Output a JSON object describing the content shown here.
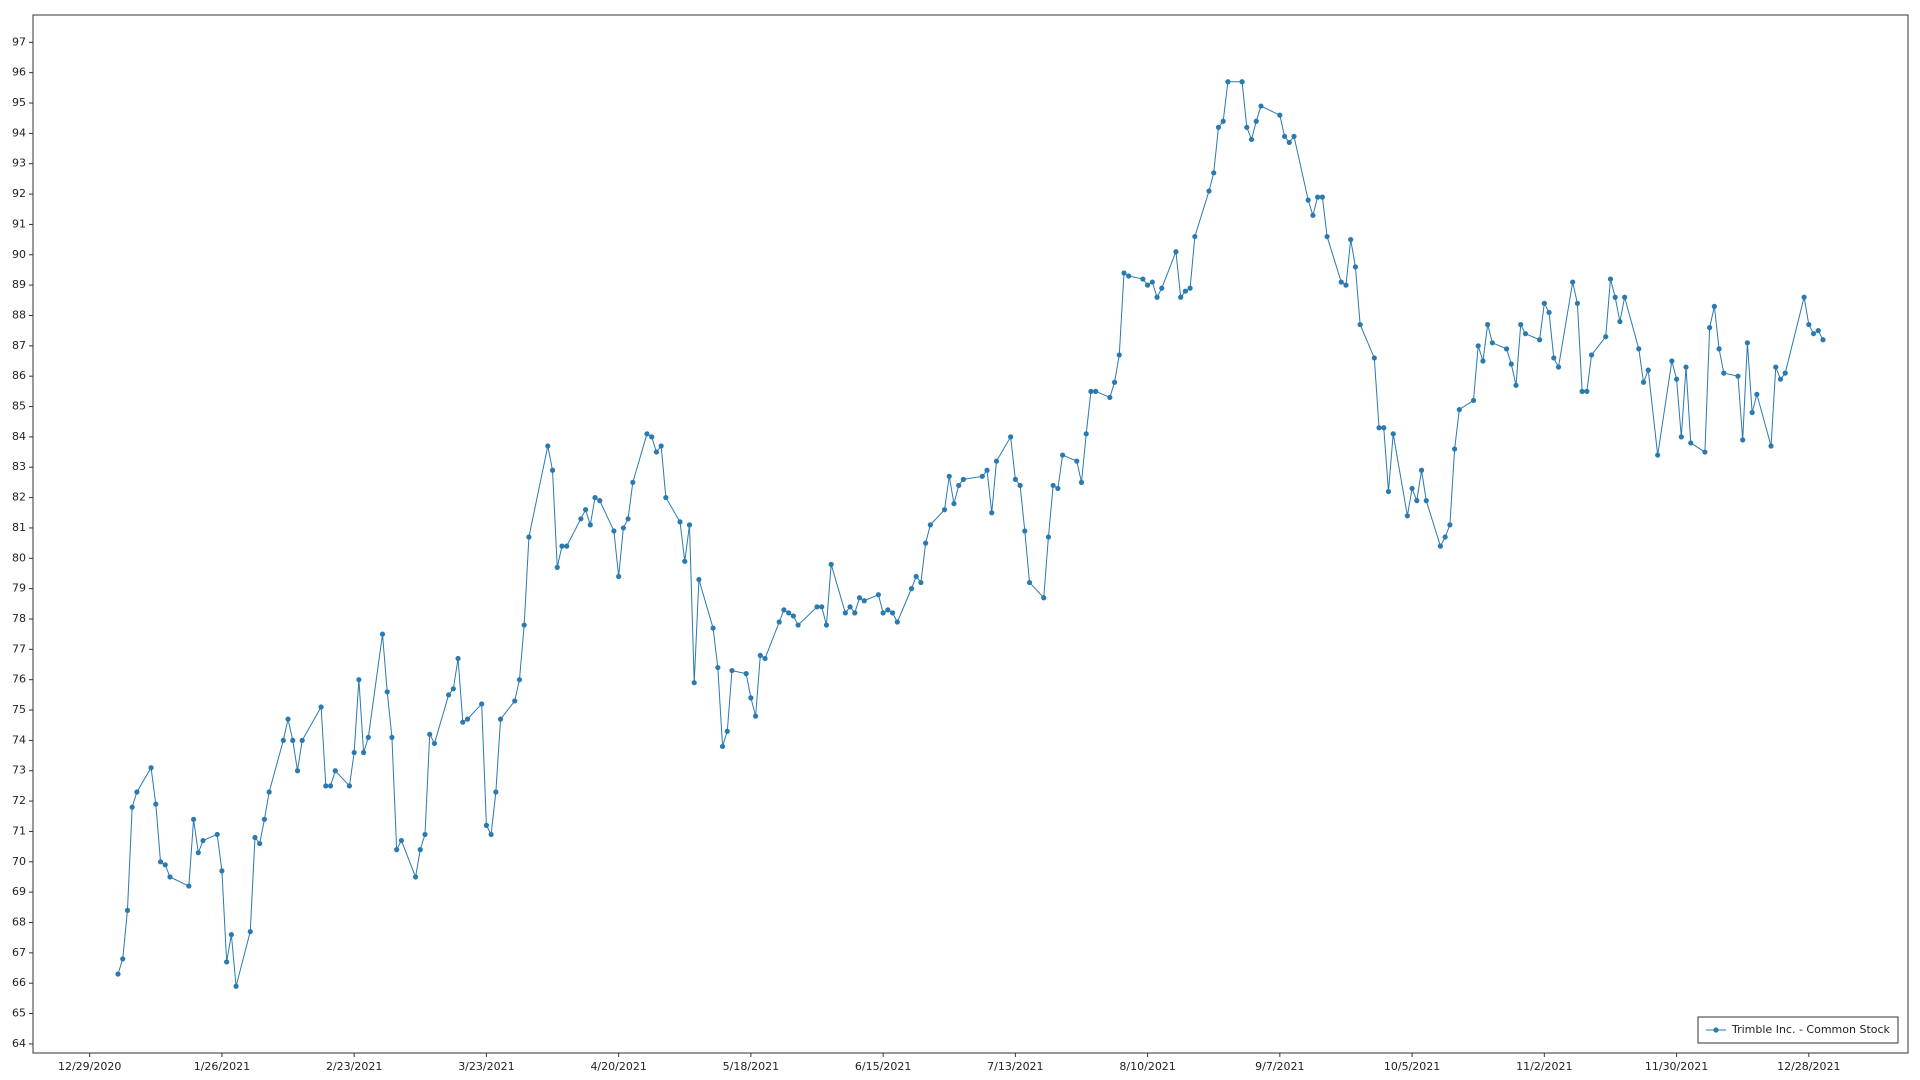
{
  "chart_data": {
    "type": "line",
    "x": [
      "1/4/2021",
      "1/5/2021",
      "1/6/2021",
      "1/7/2021",
      "1/8/2021",
      "1/11/2021",
      "1/12/2021",
      "1/13/2021",
      "1/14/2021",
      "1/15/2021",
      "1/19/2021",
      "1/20/2021",
      "1/21/2021",
      "1/22/2021",
      "1/25/2021",
      "1/26/2021",
      "1/27/2021",
      "1/28/2021",
      "1/29/2021",
      "2/1/2021",
      "2/2/2021",
      "2/3/2021",
      "2/4/2021",
      "2/5/2021",
      "2/8/2021",
      "2/9/2021",
      "2/10/2021",
      "2/11/2021",
      "2/12/2021",
      "2/16/2021",
      "2/17/2021",
      "2/18/2021",
      "2/19/2021",
      "2/22/2021",
      "2/23/2021",
      "2/24/2021",
      "2/25/2021",
      "2/26/2021",
      "3/1/2021",
      "3/2/2021",
      "3/3/2021",
      "3/4/2021",
      "3/5/2021",
      "3/8/2021",
      "3/9/2021",
      "3/10/2021",
      "3/11/2021",
      "3/12/2021",
      "3/15/2021",
      "3/16/2021",
      "3/17/2021",
      "3/18/2021",
      "3/19/2021",
      "3/22/2021",
      "3/23/2021",
      "3/24/2021",
      "3/25/2021",
      "3/26/2021",
      "3/29/2021",
      "3/30/2021",
      "3/31/2021",
      "4/1/2021",
      "4/5/2021",
      "4/6/2021",
      "4/7/2021",
      "4/8/2021",
      "4/9/2021",
      "4/12/2021",
      "4/13/2021",
      "4/14/2021",
      "4/15/2021",
      "4/16/2021",
      "4/19/2021",
      "4/20/2021",
      "4/21/2021",
      "4/22/2021",
      "4/23/2021",
      "4/26/2021",
      "4/27/2021",
      "4/28/2021",
      "4/29/2021",
      "4/30/2021",
      "5/3/2021",
      "5/4/2021",
      "5/5/2021",
      "5/6/2021",
      "5/7/2021",
      "5/10/2021",
      "5/11/2021",
      "5/12/2021",
      "5/13/2021",
      "5/14/2021",
      "5/17/2021",
      "5/18/2021",
      "5/19/2021",
      "5/20/2021",
      "5/21/2021",
      "5/24/2021",
      "5/25/2021",
      "5/26/2021",
      "5/27/2021",
      "5/28/2021",
      "6/1/2021",
      "6/2/2021",
      "6/3/2021",
      "6/4/2021",
      "6/7/2021",
      "6/8/2021",
      "6/9/2021",
      "6/10/2021",
      "6/11/2021",
      "6/14/2021",
      "6/15/2021",
      "6/16/2021",
      "6/17/2021",
      "6/18/2021",
      "6/21/2021",
      "6/22/2021",
      "6/23/2021",
      "6/24/2021",
      "6/25/2021",
      "6/28/2021",
      "6/29/2021",
      "6/30/2021",
      "7/1/2021",
      "7/2/2021",
      "7/6/2021",
      "7/7/2021",
      "7/8/2021",
      "7/9/2021",
      "7/12/2021",
      "7/13/2021",
      "7/14/2021",
      "7/15/2021",
      "7/16/2021",
      "7/19/2021",
      "7/20/2021",
      "7/21/2021",
      "7/22/2021",
      "7/23/2021",
      "7/26/2021",
      "7/27/2021",
      "7/28/2021",
      "7/29/2021",
      "7/30/2021",
      "8/2/2021",
      "8/3/2021",
      "8/4/2021",
      "8/5/2021",
      "8/6/2021",
      "8/9/2021",
      "8/10/2021",
      "8/11/2021",
      "8/12/2021",
      "8/13/2021",
      "8/16/2021",
      "8/17/2021",
      "8/18/2021",
      "8/19/2021",
      "8/20/2021",
      "8/23/2021",
      "8/24/2021",
      "8/25/2021",
      "8/26/2021",
      "8/27/2021",
      "8/30/2021",
      "8/31/2021",
      "9/1/2021",
      "9/2/2021",
      "9/3/2021",
      "9/7/2021",
      "9/8/2021",
      "9/9/2021",
      "9/10/2021",
      "9/13/2021",
      "9/14/2021",
      "9/15/2021",
      "9/16/2021",
      "9/17/2021",
      "9/20/2021",
      "9/21/2021",
      "9/22/2021",
      "9/23/2021",
      "9/24/2021",
      "9/27/2021",
      "9/28/2021",
      "9/29/2021",
      "9/30/2021",
      "10/1/2021",
      "10/4/2021",
      "10/5/2021",
      "10/6/2021",
      "10/7/2021",
      "10/8/2021",
      "10/11/2021",
      "10/12/2021",
      "10/13/2021",
      "10/14/2021",
      "10/15/2021",
      "10/18/2021",
      "10/19/2021",
      "10/20/2021",
      "10/21/2021",
      "10/22/2021",
      "10/25/2021",
      "10/26/2021",
      "10/27/2021",
      "10/28/2021",
      "10/29/2021",
      "11/1/2021",
      "11/2/2021",
      "11/3/2021",
      "11/4/2021",
      "11/5/2021",
      "11/8/2021",
      "11/9/2021",
      "11/10/2021",
      "11/11/2021",
      "11/12/2021",
      "11/15/2021",
      "11/16/2021",
      "11/17/2021",
      "11/18/2021",
      "11/19/2021",
      "11/22/2021",
      "11/23/2021",
      "11/24/2021",
      "11/26/2021",
      "11/29/2021",
      "11/30/2021",
      "12/1/2021",
      "12/2/2021",
      "12/3/2021",
      "12/6/2021",
      "12/7/2021",
      "12/8/2021",
      "12/9/2021",
      "12/10/2021",
      "12/13/2021",
      "12/14/2021",
      "12/15/2021",
      "12/16/2021",
      "12/17/2021",
      "12/20/2021",
      "12/21/2021",
      "12/22/2021",
      "12/23/2021",
      "12/27/2021",
      "12/28/2021",
      "12/29/2021",
      "12/30/2021",
      "12/31/2021"
    ],
    "series": [
      {
        "name": "Trimble Inc. - Common Stock",
        "color": "#2a7ab0",
        "values": [
          66.3,
          66.8,
          68.4,
          71.8,
          72.3,
          73.1,
          71.9,
          70.0,
          69.9,
          69.5,
          69.2,
          71.4,
          70.3,
          70.7,
          70.9,
          69.7,
          66.7,
          67.6,
          65.9,
          67.7,
          70.8,
          70.6,
          71.4,
          72.3,
          74.0,
          74.7,
          74.0,
          73.0,
          74.0,
          75.1,
          72.5,
          72.5,
          73.0,
          72.5,
          73.6,
          76.0,
          73.6,
          74.1,
          77.5,
          75.6,
          74.1,
          70.4,
          70.7,
          69.5,
          70.4,
          70.9,
          74.2,
          73.9,
          75.5,
          75.7,
          76.7,
          74.6,
          74.7,
          75.2,
          71.2,
          70.9,
          72.3,
          74.7,
          75.3,
          76.0,
          77.8,
          80.7,
          83.7,
          82.9,
          79.7,
          80.4,
          80.4,
          81.3,
          81.6,
          81.1,
          82.0,
          81.9,
          80.9,
          79.4,
          81.0,
          81.3,
          82.5,
          84.1,
          84.0,
          83.5,
          83.7,
          82.0,
          81.2,
          79.9,
          81.1,
          75.9,
          79.3,
          77.7,
          76.4,
          73.8,
          74.3,
          76.3,
          76.2,
          75.4,
          74.8,
          76.8,
          76.7,
          77.9,
          78.3,
          78.2,
          78.1,
          77.8,
          78.4,
          78.4,
          77.8,
          79.8,
          78.2,
          78.4,
          78.2,
          78.7,
          78.6,
          78.8,
          78.2,
          78.3,
          78.2,
          77.9,
          79.0,
          79.4,
          79.2,
          80.5,
          81.1,
          81.6,
          82.7,
          81.8,
          82.4,
          82.6,
          82.7,
          82.9,
          81.5,
          83.2,
          84.0,
          82.6,
          82.4,
          80.9,
          79.2,
          78.7,
          80.7,
          82.4,
          82.3,
          83.4,
          83.2,
          82.5,
          84.1,
          85.5,
          85.5,
          85.3,
          85.8,
          86.7,
          89.4,
          89.3,
          89.2,
          89.0,
          89.1,
          88.6,
          88.9,
          90.1,
          88.6,
          88.8,
          88.9,
          90.6,
          92.1,
          92.7,
          94.2,
          94.4,
          95.7,
          95.7,
          94.2,
          93.8,
          94.4,
          94.9,
          94.6,
          93.9,
          93.7,
          93.9,
          91.8,
          91.3,
          91.9,
          91.9,
          90.6,
          89.1,
          89.0,
          90.5,
          89.6,
          87.7,
          86.6,
          84.3,
          84.3,
          82.2,
          84.1,
          81.4,
          82.3,
          81.9,
          82.9,
          81.9,
          80.4,
          80.7,
          81.1,
          83.6,
          84.9,
          85.2,
          87.0,
          86.5,
          87.7,
          87.1,
          86.9,
          86.4,
          85.7,
          87.7,
          87.4,
          87.2,
          88.4,
          88.1,
          86.6,
          86.3,
          89.1,
          88.4,
          85.5,
          85.5,
          86.7,
          87.3,
          89.2,
          88.6,
          87.8,
          88.6,
          86.9,
          85.8,
          86.2,
          83.4,
          86.5,
          85.9,
          84.0,
          86.3,
          83.8,
          83.5,
          87.6,
          88.3,
          86.9,
          86.1,
          86.0,
          83.9,
          87.1,
          84.8,
          85.4,
          83.7,
          86.3,
          85.9,
          86.1,
          88.6,
          87.7,
          87.4,
          87.5,
          87.2
        ]
      }
    ],
    "xlim": [
      "12/17/2020",
      "1/18/2022"
    ],
    "xticks": [
      "12/29/2020",
      "1/26/2021",
      "2/23/2021",
      "3/23/2021",
      "4/20/2021",
      "5/18/2021",
      "6/15/2021",
      "7/13/2021",
      "8/10/2021",
      "9/7/2021",
      "10/5/2021",
      "11/2/2021",
      "11/30/2021",
      "12/28/2021"
    ],
    "ylim": [
      63.7,
      97.9
    ],
    "yticks": [
      64,
      65,
      66,
      67,
      68,
      69,
      70,
      71,
      72,
      73,
      74,
      75,
      76,
      77,
      78,
      79,
      80,
      81,
      82,
      83,
      84,
      85,
      86,
      87,
      88,
      89,
      90,
      91,
      92,
      93,
      94,
      95,
      96,
      97
    ],
    "grid": true,
    "legend": "lower right"
  }
}
